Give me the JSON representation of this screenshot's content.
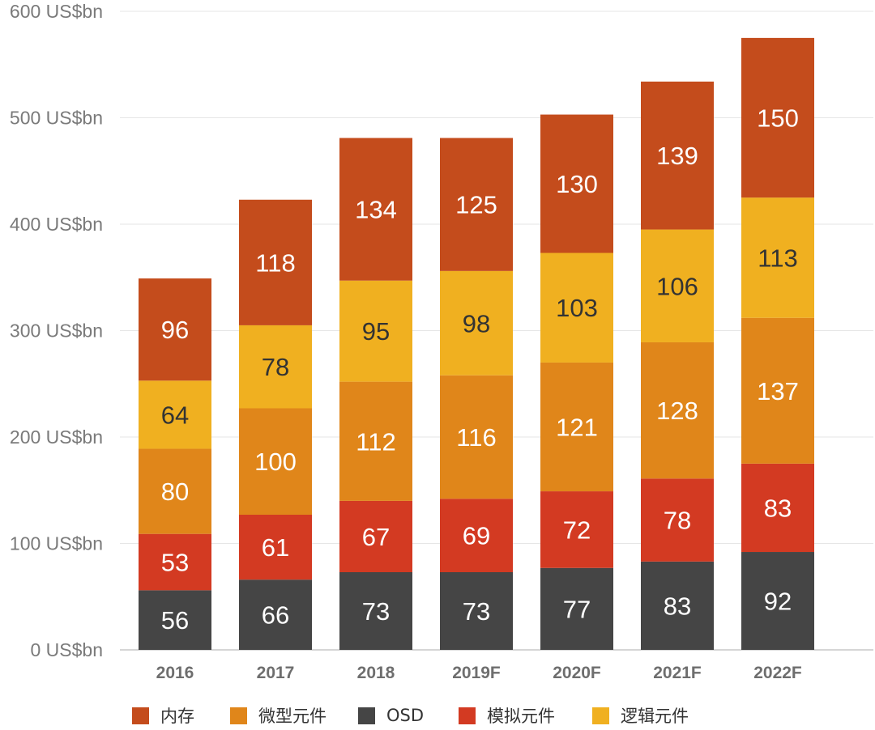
{
  "chart_data": {
    "type": "bar",
    "stacked": true,
    "title": "",
    "xlabel": "",
    "ylabel": "",
    "ylim": [
      0,
      600
    ],
    "yticks": [
      {
        "value": 0,
        "label": "0 US$bn"
      },
      {
        "value": 100,
        "label": "100 US$bn"
      },
      {
        "value": 200,
        "label": "200 US$bn"
      },
      {
        "value": 300,
        "label": "300 US$bn"
      },
      {
        "value": 400,
        "label": "400 US$bn"
      },
      {
        "value": 500,
        "label": "500 US$bn"
      },
      {
        "value": 600,
        "label": "600 US$bn"
      }
    ],
    "grid": true,
    "categories": [
      "2016",
      "2017",
      "2018",
      "2019F",
      "2020F",
      "2021F",
      "2022F"
    ],
    "series": [
      {
        "name": "OSD",
        "color": "#454545",
        "label_color": "#ffffff",
        "values": [
          56,
          66,
          73,
          73,
          77,
          83,
          92
        ]
      },
      {
        "name": "模拟元件",
        "color": "#d33a22",
        "label_color": "#ffffff",
        "values": [
          53,
          61,
          67,
          69,
          72,
          78,
          83
        ]
      },
      {
        "name": "微型元件",
        "color": "#e0861a",
        "label_color": "#ffffff",
        "values": [
          80,
          100,
          112,
          116,
          121,
          128,
          137
        ]
      },
      {
        "name": "逻辑元件",
        "color": "#f0b020",
        "label_color": "#333333",
        "values": [
          64,
          78,
          95,
          98,
          103,
          106,
          113
        ]
      },
      {
        "name": "内存",
        "color": "#c44c1c",
        "label_color": "#ffffff",
        "values": [
          96,
          118,
          134,
          125,
          130,
          139,
          150
        ]
      }
    ],
    "legend": {
      "position": "bottom",
      "items": [
        {
          "name": "内存",
          "color": "#c44c1c"
        },
        {
          "name": "微型元件",
          "color": "#e0861a"
        },
        {
          "name": "OSD",
          "color": "#454545"
        },
        {
          "name": "模拟元件",
          "color": "#d33a22"
        },
        {
          "name": "逻辑元件",
          "color": "#f0b020"
        }
      ]
    }
  }
}
